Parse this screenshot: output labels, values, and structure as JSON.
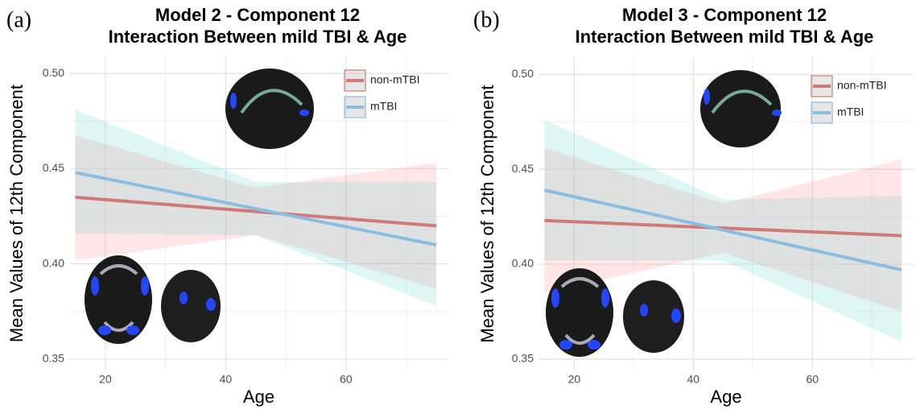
{
  "chart_data": [
    {
      "type": "line",
      "panel_label": "(a)",
      "title_lines": [
        "Model 2 - Component 12",
        "Interaction Between mild TBI & Age"
      ],
      "x_label": "Age",
      "y_label": "Mean Values of 12th Component",
      "x": [
        15,
        45,
        75
      ],
      "xlim": [
        14,
        77
      ],
      "xticks": [
        20,
        40,
        60
      ],
      "x_minor_ticks": [
        30,
        50,
        70
      ],
      "ylim": [
        0.344,
        0.509
      ],
      "yticks": [
        0.35,
        {
          "value": 0.4,
          "label": "0.40"
        },
        0.45,
        {
          "value": 0.5,
          "label": "0.50"
        }
      ],
      "y_minor_ticks": [
        0.375,
        0.425,
        0.475
      ],
      "grid": true,
      "series": [
        {
          "name": "non-mTBI",
          "color": "#d07a78",
          "band_color": "rgba(255,150,150,0.25)",
          "values": [
            0.435,
            0.4275,
            0.42
          ],
          "upper": [
            0.4675,
            0.44,
            0.453
          ],
          "lower": [
            0.402,
            0.415,
            0.387
          ]
        },
        {
          "name": "mTBI",
          "color": "#8bbde0",
          "band_color": "rgba(110,215,215,0.22)",
          "values": [
            0.448,
            0.429,
            0.41
          ],
          "upper": [
            0.481,
            0.443,
            0.443
          ],
          "lower": [
            0.416,
            0.415,
            0.378
          ]
        }
      ]
    },
    {
      "type": "line",
      "panel_label": "(b)",
      "title_lines": [
        "Model 3 - Component 12",
        "Interaction Between mild TBI & Age"
      ],
      "x_label": "Age",
      "y_label": "Mean Values of 12th Component",
      "x": [
        15,
        45,
        75
      ],
      "xlim": [
        14,
        77
      ],
      "xticks": [
        20,
        40,
        60
      ],
      "x_minor_ticks": [
        30,
        50,
        70
      ],
      "ylim": [
        0.344,
        0.509
      ],
      "yticks": [
        0.35,
        {
          "value": 0.4,
          "label": "0.40"
        },
        0.45,
        {
          "value": 0.5,
          "label": "0.50"
        }
      ],
      "y_minor_ticks": [
        0.375,
        0.425,
        0.475
      ],
      "grid": true,
      "series": [
        {
          "name": "non-mTBI",
          "color": "#d07a78",
          "band_color": "rgba(255,150,150,0.25)",
          "values": [
            0.423,
            0.419,
            0.415
          ],
          "upper": [
            0.461,
            0.432,
            0.455
          ],
          "lower": [
            0.385,
            0.406,
            0.375
          ]
        },
        {
          "name": "mTBI",
          "color": "#8bbde0",
          "band_color": "rgba(110,215,215,0.22)",
          "values": [
            0.439,
            0.418,
            0.397
          ],
          "upper": [
            0.476,
            0.434,
            0.436
          ],
          "lower": [
            0.402,
            0.402,
            0.359
          ]
        }
      ]
    }
  ]
}
